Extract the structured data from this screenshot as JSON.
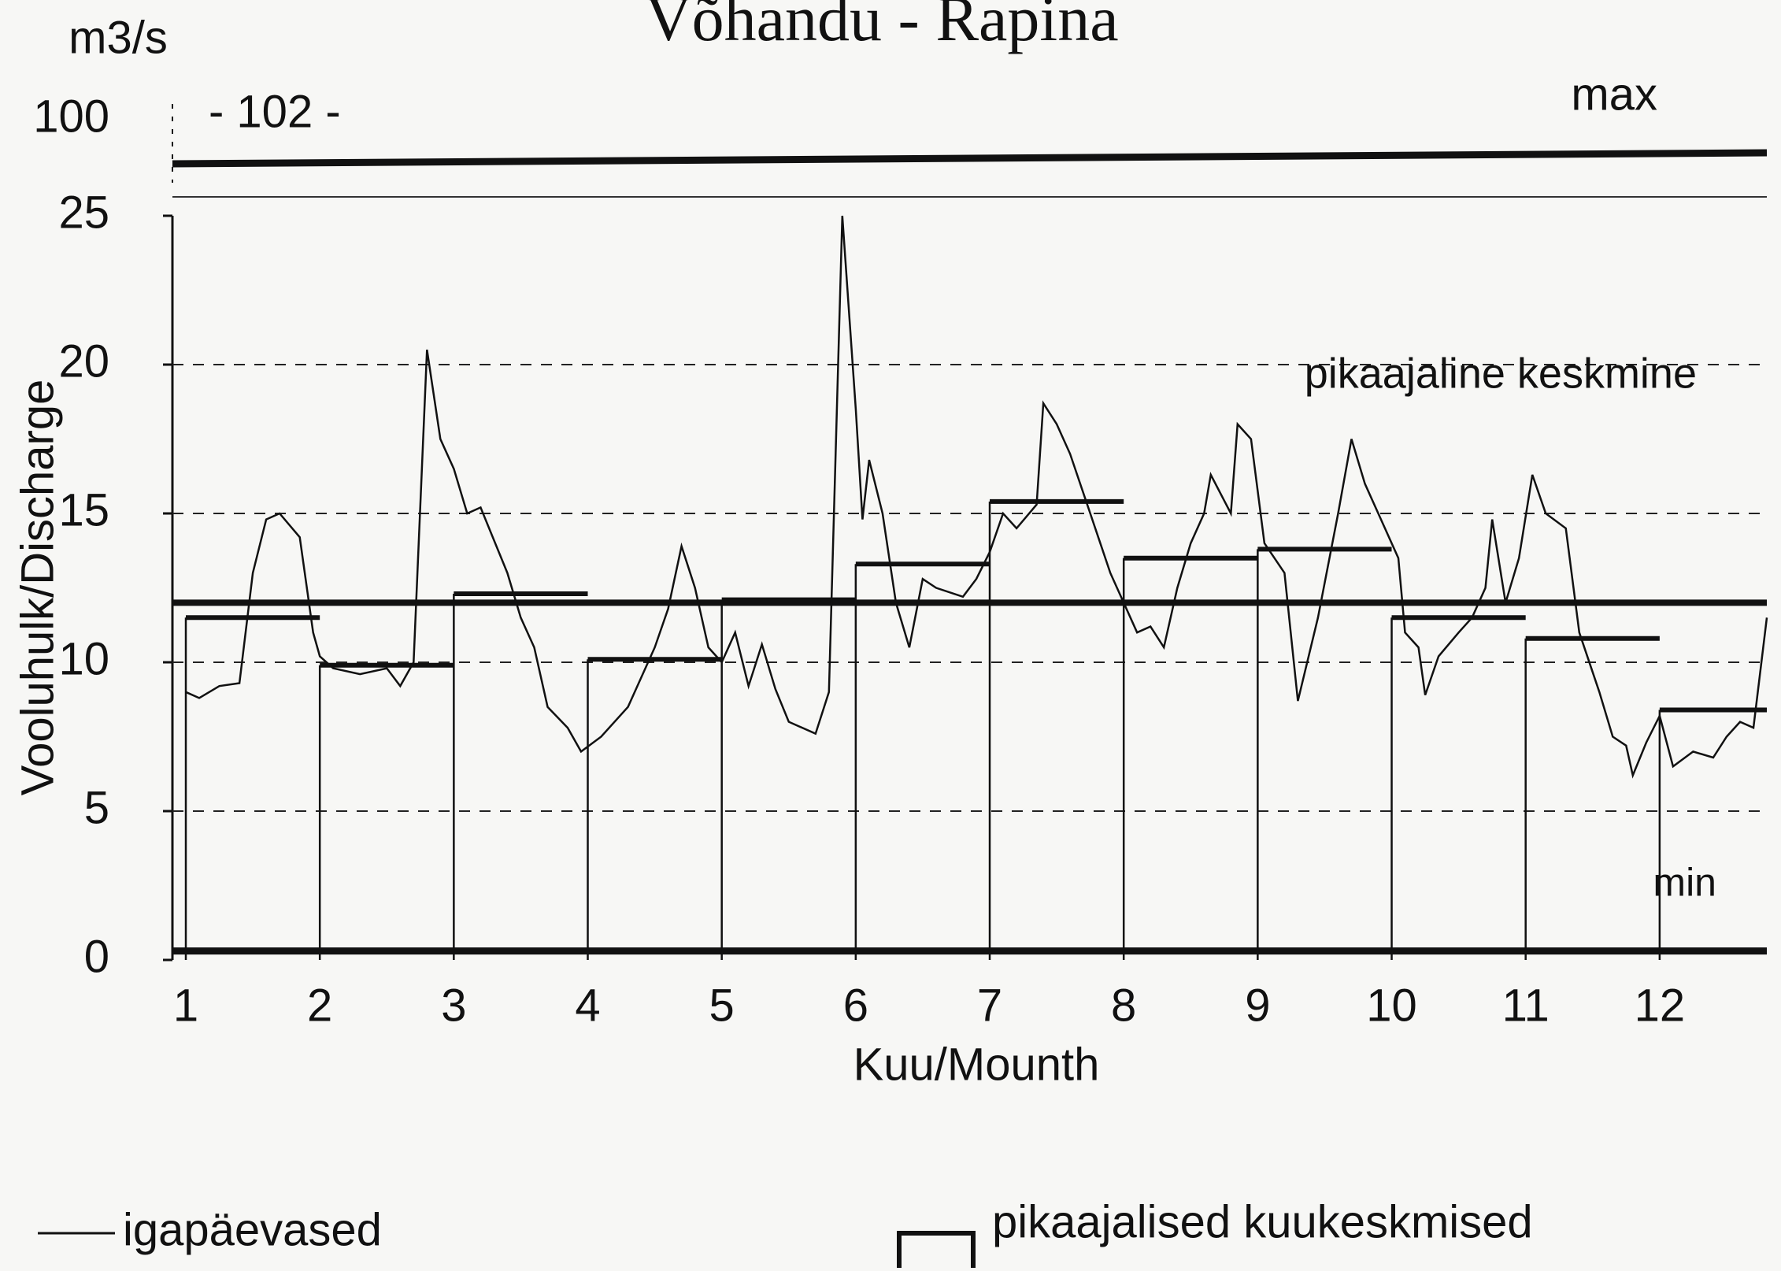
{
  "chart_data": {
    "type": "line",
    "title": "Võhandu - Rapina",
    "y_unit": "m3/s",
    "y_label": "Vooluhulk/Discharge",
    "x_label": "Kuu/Mounth",
    "xlim": [
      0.9,
      12.8
    ],
    "xticks": [
      1,
      2,
      3,
      4,
      5,
      6,
      7,
      8,
      9,
      10,
      11,
      12
    ],
    "ylim": [
      0,
      25
    ],
    "yticks": [
      0,
      5,
      10,
      15,
      20,
      25
    ],
    "grid": true,
    "upper_tick": 100,
    "max_line": {
      "label": "max",
      "value": 102,
      "value_label": "- 102 -"
    },
    "min_line": {
      "label": "min",
      "value": 0.3
    },
    "mean_line": {
      "label": "pikaajaline keskmine",
      "value": 12
    },
    "monthly_means": {
      "name": "pikaajalised kuukeskmised",
      "color": "#111111",
      "months": [
        1,
        2,
        3,
        4,
        5,
        6,
        7,
        8,
        9,
        10,
        11,
        12
      ],
      "values": [
        11.5,
        9.9,
        12.3,
        10.1,
        12.1,
        13.3,
        15.4,
        13.5,
        13.8,
        11.5,
        10.8,
        8.4
      ]
    },
    "series": [
      {
        "name": "igapäevased",
        "color": "#111111",
        "x": [
          1.0,
          1.1,
          1.25,
          1.4,
          1.5,
          1.6,
          1.7,
          1.85,
          1.95,
          2.0,
          2.1,
          2.3,
          2.5,
          2.6,
          2.7,
          2.8,
          2.9,
          3.0,
          3.1,
          3.2,
          3.4,
          3.5,
          3.6,
          3.7,
          3.85,
          3.95,
          4.1,
          4.3,
          4.5,
          4.6,
          4.7,
          4.8,
          4.9,
          5.0,
          5.1,
          5.2,
          5.3,
          5.4,
          5.5,
          5.7,
          5.8,
          5.85,
          5.9,
          6.0,
          6.05,
          6.1,
          6.2,
          6.3,
          6.4,
          6.5,
          6.6,
          6.8,
          6.9,
          7.0,
          7.1,
          7.2,
          7.35,
          7.4,
          7.5,
          7.6,
          7.75,
          7.9,
          8.0,
          8.1,
          8.2,
          8.3,
          8.4,
          8.5,
          8.6,
          8.65,
          8.8,
          8.85,
          8.95,
          9.05,
          9.2,
          9.3,
          9.45,
          9.6,
          9.7,
          9.8,
          9.95,
          10.05,
          10.1,
          10.2,
          10.25,
          10.35,
          10.5,
          10.6,
          10.7,
          10.75,
          10.85,
          10.95,
          11.05,
          11.15,
          11.3,
          11.4,
          11.55,
          11.65,
          11.75,
          11.8,
          11.9,
          12.0,
          12.1,
          12.25,
          12.4,
          12.5,
          12.6,
          12.7,
          12.8
        ],
        "values": [
          9,
          8.8,
          9.2,
          9.3,
          13,
          14.8,
          15,
          14.2,
          11,
          10.2,
          9.8,
          9.6,
          9.8,
          9.2,
          10,
          20.5,
          17.5,
          16.5,
          15,
          15.2,
          13,
          11.5,
          10.5,
          8.5,
          7.8,
          7,
          7.5,
          8.5,
          10.5,
          11.8,
          13.9,
          12.5,
          10.5,
          10,
          11,
          9.2,
          10.6,
          9.1,
          8,
          7.6,
          9,
          17,
          25,
          18.5,
          14.8,
          16.8,
          15,
          12,
          10.5,
          12.8,
          12.5,
          12.2,
          12.8,
          13.7,
          15,
          14.5,
          15.3,
          18.7,
          18,
          17,
          15,
          13,
          12,
          11,
          11.2,
          10.5,
          12.5,
          14,
          15,
          16.3,
          15,
          18,
          17.5,
          14,
          13,
          8.7,
          11.5,
          15,
          17.5,
          16,
          14.5,
          13.5,
          11,
          10.5,
          8.9,
          10.2,
          11,
          11.5,
          12.5,
          14.8,
          12,
          13.5,
          16.3,
          15,
          14.5,
          11,
          9,
          7.5,
          7.2,
          6.2,
          7.3,
          8.2,
          6.5,
          7,
          6.8,
          7.5,
          8,
          7.8,
          11.5
        ]
      }
    ]
  }
}
